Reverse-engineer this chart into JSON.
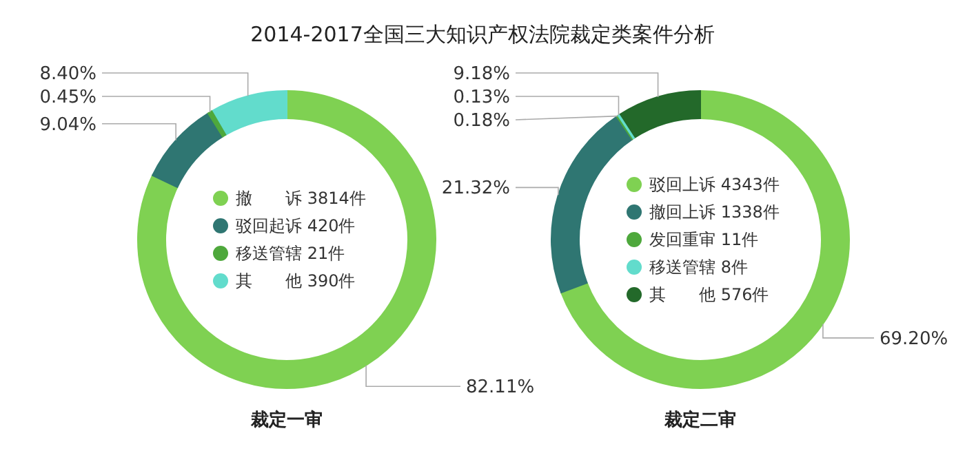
{
  "chart_data": [
    {
      "type": "donut",
      "title": "2014-2017全国三大知识产权法院裁定类案件分析",
      "xlabel": "裁定一审",
      "legend": "center",
      "categories": [
        "撤　　诉 3814件",
        "驳回起诉 420件",
        "移送管辖 21件",
        "其　　他 390件"
      ],
      "values": [
        82.11,
        9.04,
        0.45,
        8.4
      ],
      "value_labels": [
        "82.11%",
        "9.04%",
        "0.45%",
        "8.40%"
      ],
      "colors": [
        "#7fd152",
        "#2f7672",
        "#4ea83c",
        "#62dccc"
      ]
    },
    {
      "type": "donut",
      "xlabel": "裁定二审",
      "legend": "center",
      "categories": [
        "驳回上诉 4343件",
        "撤回上诉 1338件",
        "发回重审 11件",
        "移送管辖 8件",
        "其　　他 576件"
      ],
      "values": [
        69.2,
        21.32,
        0.18,
        0.13,
        9.18
      ],
      "value_labels": [
        "69.20%",
        "21.32%",
        "0.18%",
        "0.13%",
        "9.18%"
      ],
      "colors": [
        "#7fd152",
        "#2f7672",
        "#4ea83c",
        "#62dccc",
        "#23692a"
      ]
    }
  ]
}
